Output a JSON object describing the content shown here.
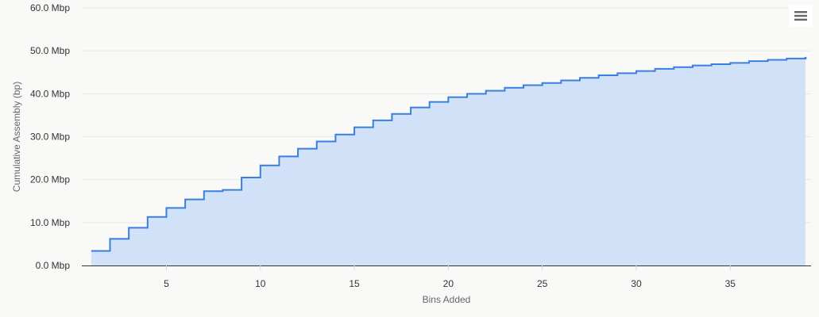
{
  "chart_data": {
    "type": "area",
    "step": true,
    "xlabel": "Bins Added",
    "ylabel": "Cumulative Assembly (bp)",
    "x_ticks": [
      5,
      10,
      15,
      20,
      25,
      30,
      35
    ],
    "y_ticks": [
      0,
      10,
      20,
      30,
      40,
      50,
      60
    ],
    "y_tick_labels": [
      "0.0 Mbp",
      "10.0 Mbp",
      "20.0 Mbp",
      "30.0 Mbp",
      "40.0 Mbp",
      "50.0 Mbp",
      "60.0 Mbp"
    ],
    "xlim": [
      0.5,
      39.3
    ],
    "ylim": [
      0,
      60
    ],
    "y_unit": "Mbp",
    "grid": true,
    "legend": false,
    "series_color": "#3a7fde",
    "fill_color": "#d1e1f8",
    "series": [
      {
        "x": [
          1,
          2,
          3,
          4,
          5,
          6,
          7,
          8,
          9,
          10,
          11,
          12,
          13,
          14,
          15,
          16,
          17,
          18,
          19,
          20,
          21,
          22,
          23,
          24,
          25,
          26,
          27,
          28,
          29,
          30,
          31,
          32,
          33,
          34,
          35,
          36,
          37,
          38,
          39
        ],
        "values": [
          3.4,
          6.2,
          8.8,
          11.3,
          13.4,
          15.4,
          17.3,
          17.6,
          20.5,
          23.3,
          25.4,
          27.2,
          28.9,
          30.5,
          32.2,
          33.8,
          35.3,
          36.8,
          38.1,
          39.2,
          40.0,
          40.7,
          41.4,
          42.0,
          42.5,
          43.1,
          43.7,
          44.3,
          44.8,
          45.3,
          45.8,
          46.2,
          46.6,
          46.9,
          47.2,
          47.6,
          47.9,
          48.2,
          48.3
        ]
      }
    ]
  },
  "menu": {
    "icon": "hamburger-icon"
  }
}
